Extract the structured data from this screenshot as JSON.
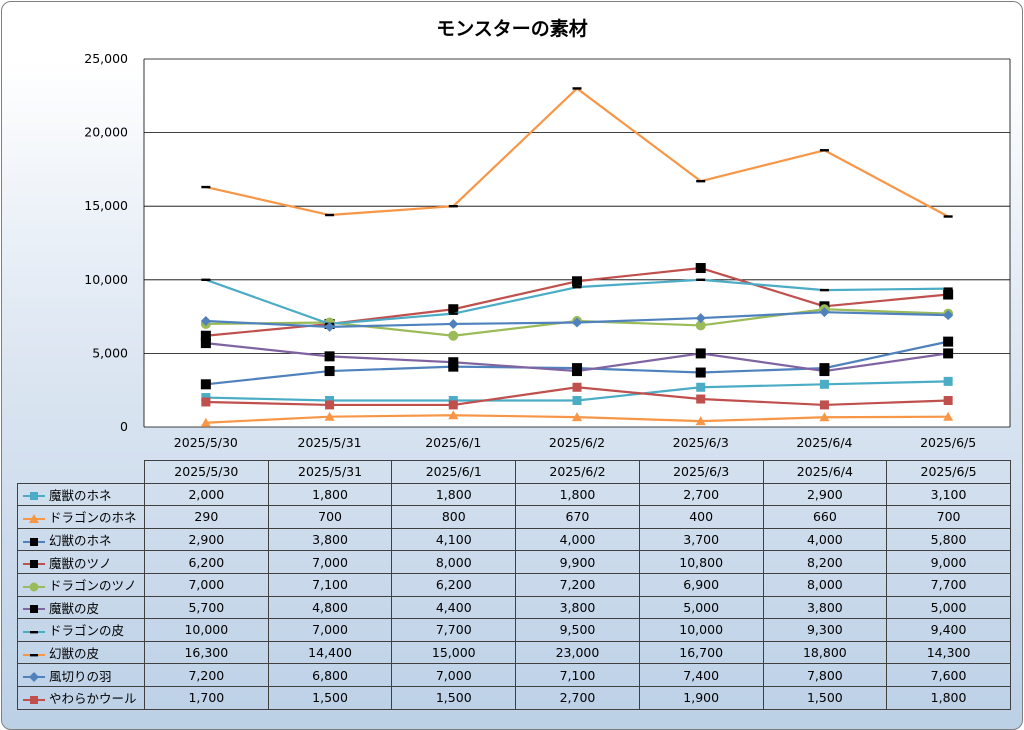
{
  "chart_data": {
    "type": "line",
    "title": "モンスターの素材",
    "categories": [
      "2025/5/30",
      "2025/5/31",
      "2025/6/1",
      "2025/6/2",
      "2025/6/3",
      "2025/6/4",
      "2025/6/5"
    ],
    "ylim": [
      0,
      25000
    ],
    "yticks": [
      "0",
      "5,000",
      "10,000",
      "15,000",
      "20,000",
      "25,000"
    ],
    "grid": "horizontal",
    "series": [
      {
        "name": "魔獣のホネ",
        "color": "#4bacc6",
        "marker": "square",
        "line": true,
        "values": [
          2000,
          1800,
          1800,
          1800,
          2700,
          2900,
          3100
        ],
        "labels": [
          "2,000",
          "1,800",
          "1,800",
          "1,800",
          "2,700",
          "2,900",
          "3,100"
        ]
      },
      {
        "name": "ドラゴンのホネ",
        "color": "#f79646",
        "marker": "triangle",
        "line": true,
        "values": [
          290,
          700,
          800,
          670,
          400,
          660,
          700
        ],
        "labels": [
          "290",
          "700",
          "800",
          "670",
          "400",
          "660",
          "700"
        ]
      },
      {
        "name": "幻獣のホネ",
        "color": "#4f81bd",
        "marker": "square-black",
        "line": true,
        "values": [
          2900,
          3800,
          4100,
          4000,
          3700,
          4000,
          5800
        ],
        "labels": [
          "2,900",
          "3,800",
          "4,100",
          "4,000",
          "3,700",
          "4,000",
          "5,800"
        ]
      },
      {
        "name": "魔獣のツノ",
        "color": "#c0504d",
        "marker": "square-black",
        "line": true,
        "values": [
          6200,
          7000,
          8000,
          9900,
          10800,
          8200,
          9000
        ],
        "labels": [
          "6,200",
          "7,000",
          "8,000",
          "9,900",
          "10,800",
          "8,200",
          "9,000"
        ]
      },
      {
        "name": "ドラゴンのツノ",
        "color": "#9bbb59",
        "marker": "circle",
        "line": true,
        "values": [
          7000,
          7100,
          6200,
          7200,
          6900,
          8000,
          7700
        ],
        "labels": [
          "7,000",
          "7,100",
          "6,200",
          "7,200",
          "6,900",
          "8,000",
          "7,700"
        ]
      },
      {
        "name": "魔獣の皮",
        "color": "#8064a2",
        "marker": "square-black",
        "line": true,
        "values": [
          5700,
          4800,
          4400,
          3800,
          5000,
          3800,
          5000
        ],
        "labels": [
          "5,700",
          "4,800",
          "4,400",
          "3,800",
          "5,000",
          "3,800",
          "5,000"
        ]
      },
      {
        "name": "ドラゴンの皮",
        "color": "#4bacc6",
        "marker": "dash",
        "line": true,
        "values": [
          10000,
          7000,
          7700,
          9500,
          10000,
          9300,
          9400
        ],
        "labels": [
          "10,000",
          "7,000",
          "7,700",
          "9,500",
          "10,000",
          "9,300",
          "9,400"
        ]
      },
      {
        "name": "幻獣の皮",
        "color": "#f79646",
        "marker": "dash",
        "line": true,
        "values": [
          16300,
          14400,
          15000,
          23000,
          16700,
          18800,
          14300
        ],
        "labels": [
          "16,300",
          "14,400",
          "15,000",
          "23,000",
          "16,700",
          "18,800",
          "14,300"
        ]
      },
      {
        "name": "風切りの羽",
        "color": "#4f81bd",
        "marker": "diamond",
        "line": true,
        "values": [
          7200,
          6800,
          7000,
          7100,
          7400,
          7800,
          7600
        ],
        "labels": [
          "7,200",
          "6,800",
          "7,000",
          "7,100",
          "7,400",
          "7,800",
          "7,600"
        ]
      },
      {
        "name": "やわらかウール",
        "color": "#c0504d",
        "marker": "square",
        "line": true,
        "values": [
          1700,
          1500,
          1500,
          2700,
          1900,
          1500,
          1800
        ],
        "labels": [
          "1,700",
          "1,500",
          "1,500",
          "2,700",
          "1,900",
          "1,500",
          "1,800"
        ]
      }
    ]
  }
}
